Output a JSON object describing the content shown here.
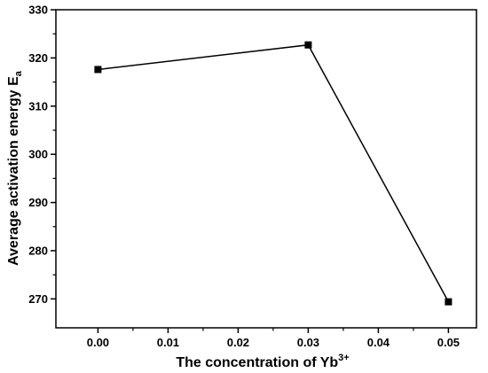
{
  "chart_data": {
    "type": "line",
    "title": "",
    "xlabel": {
      "main": "The concentration of Yb",
      "sup": "3+"
    },
    "ylabel": {
      "main": "Average activation energy E",
      "sub": "a"
    },
    "x": [
      0.0,
      0.03,
      0.05
    ],
    "series": [
      {
        "values": [
          317.6,
          322.7,
          269.4
        ],
        "marker": "square"
      }
    ],
    "xlim": [
      -0.006,
      0.054
    ],
    "ylim": [
      264,
      330
    ],
    "xticks": [
      "0.00",
      "0.01",
      "0.02",
      "0.03",
      "0.04",
      "0.05"
    ],
    "xtick_values": [
      0.0,
      0.01,
      0.02,
      0.03,
      0.04,
      0.05
    ],
    "yticks": [
      "270",
      "280",
      "290",
      "300",
      "310",
      "320",
      "330"
    ],
    "ytick_values": [
      270,
      280,
      290,
      300,
      310,
      320,
      330
    ],
    "grid": false,
    "colors": {
      "line": "#000000",
      "marker": "#000000"
    }
  }
}
